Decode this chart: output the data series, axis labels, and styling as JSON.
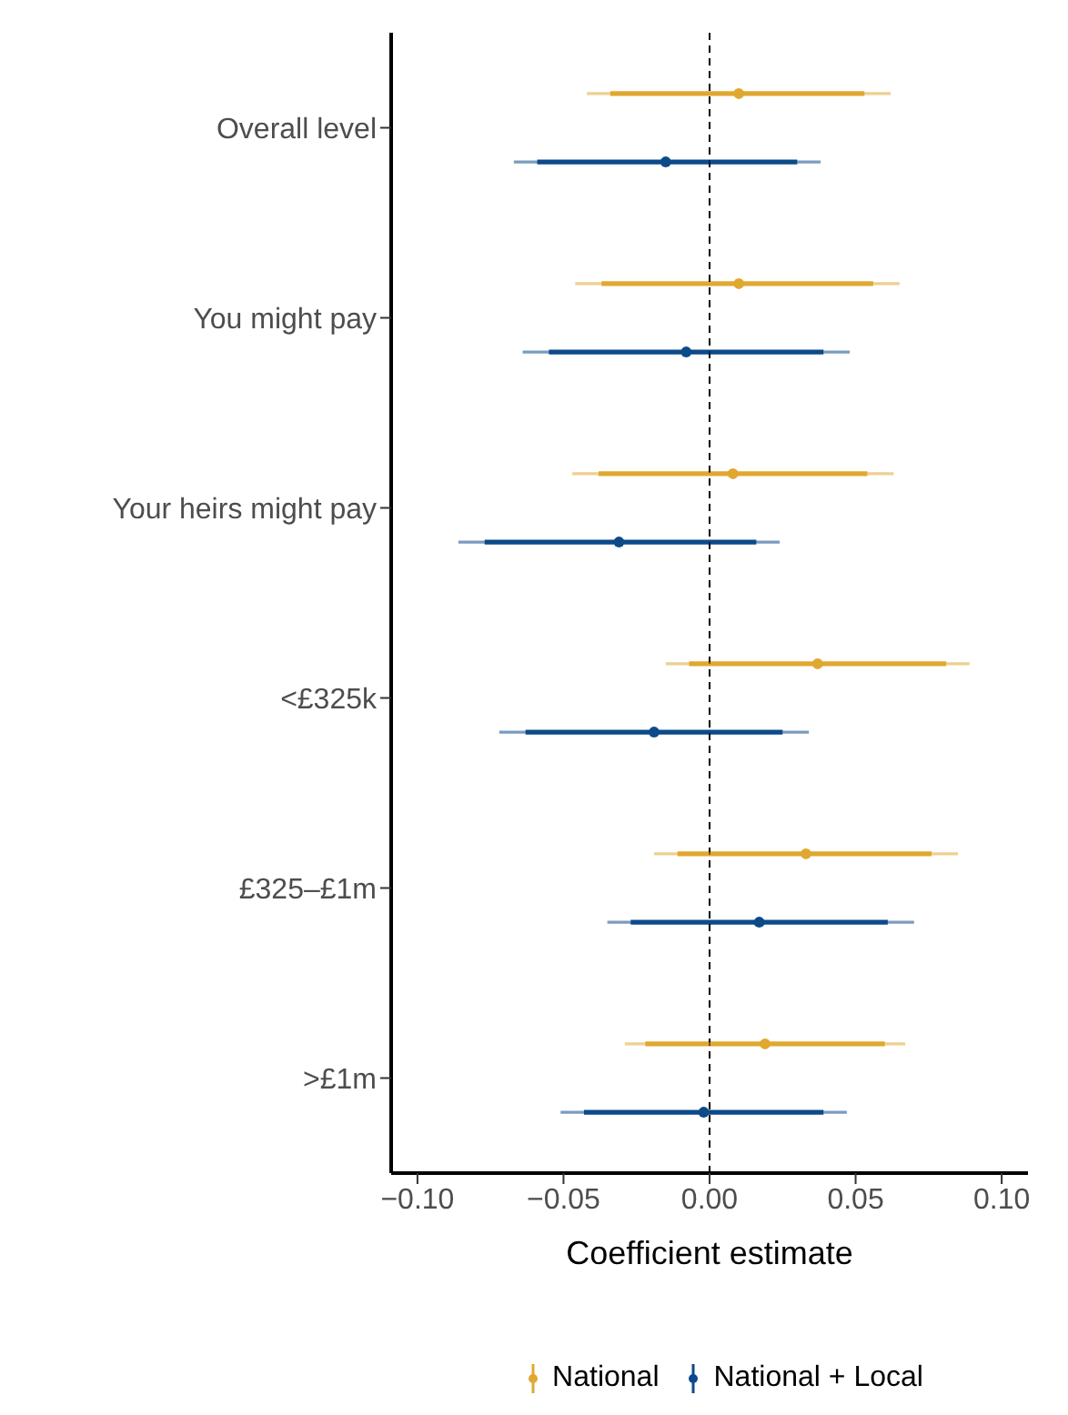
{
  "chart_data": {
    "type": "scatter",
    "orientation": "horizontal",
    "xlabel": "Coefficient estimate",
    "categories": [
      "Overall level",
      "You might pay",
      "Your heirs might pay",
      "<£325k",
      "£325–£1m",
      ">£1m"
    ],
    "xlim": [
      -0.109,
      0.109
    ],
    "xticks": [
      {
        "value": -0.1,
        "label": "−0.10"
      },
      {
        "value": -0.05,
        "label": "−0.05"
      },
      {
        "value": 0,
        "label": "0.00"
      },
      {
        "value": 0.05,
        "label": "0.05"
      },
      {
        "value": 0.1,
        "label": "0.10"
      }
    ],
    "series": [
      {
        "name": "National",
        "color": "#e0a830",
        "values": [
          0.01,
          0.01,
          0.008,
          0.037,
          0.033,
          0.019
        ],
        "errors": [
          [
            -0.042,
            0.062
          ],
          [
            -0.046,
            0.065
          ],
          [
            -0.047,
            0.063
          ],
          [
            -0.015,
            0.089
          ],
          [
            -0.019,
            0.085
          ],
          [
            -0.029,
            0.067
          ]
        ]
      },
      {
        "name": "National + Local",
        "color": "#0c4a8a",
        "values": [
          -0.015,
          -0.008,
          -0.031,
          -0.019,
          0.017,
          -0.002
        ],
        "errors": [
          [
            -0.067,
            0.038
          ],
          [
            -0.064,
            0.048
          ],
          [
            -0.086,
            0.024
          ],
          [
            -0.072,
            0.034
          ],
          [
            -0.035,
            0.07
          ],
          [
            -0.051,
            0.047
          ]
        ]
      },
      {
        "type": "bar",
        "color": "#e0a830",
        "base": [
          -0.034,
          -0.037,
          -0.038,
          -0.007,
          -0.011,
          -0.022
        ],
        "values": [
          0.087,
          0.093,
          0.092,
          0.088,
          0.087,
          0.082
        ]
      },
      {
        "type": "bar",
        "color": "#0c4a8a",
        "base": [
          -0.059,
          -0.055,
          -0.077,
          -0.063,
          -0.027,
          -0.043
        ],
        "values": [
          0.089,
          0.094,
          0.093,
          0.088,
          0.088,
          0.082
        ]
      }
    ],
    "ref_lines": [
      {
        "axis": "x",
        "value": 0,
        "line_style": "dashed",
        "color": "#000000"
      }
    ],
    "marker": "circle",
    "grid": false,
    "legend": "bottom"
  }
}
